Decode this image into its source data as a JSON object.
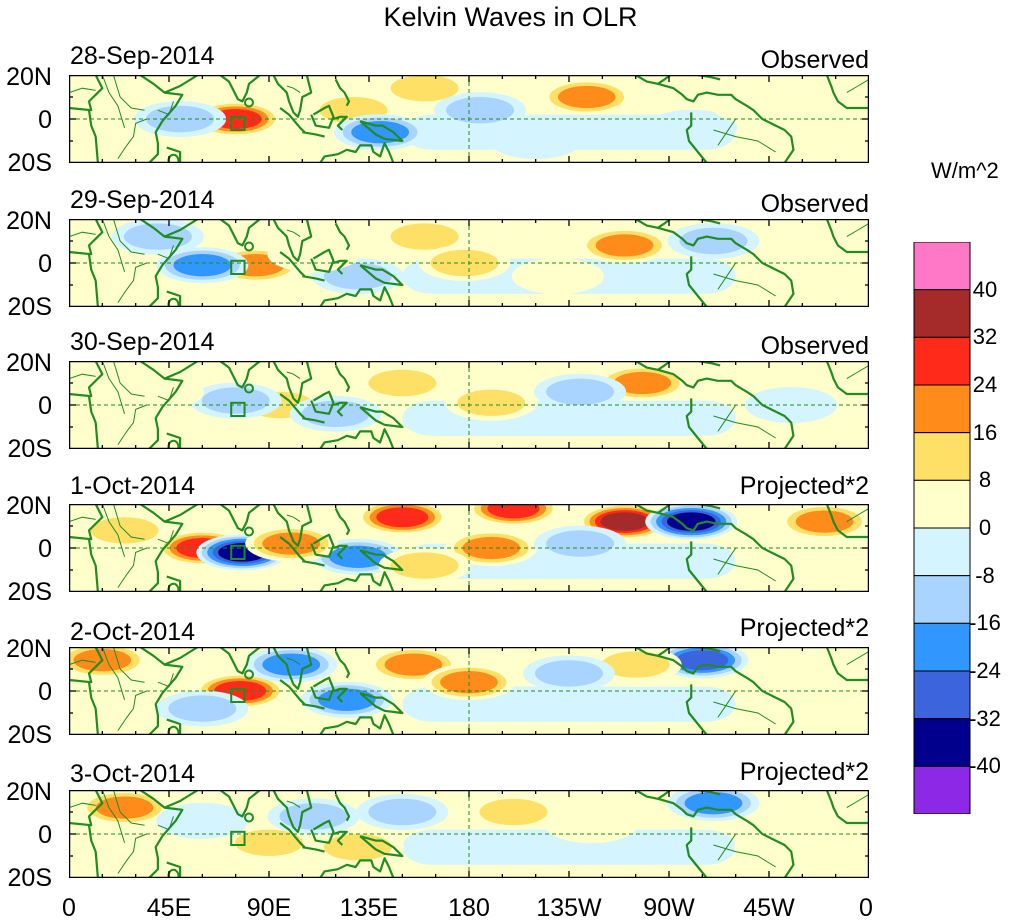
{
  "title": "Kelvin Waves in OLR",
  "units": "W/m^2",
  "lat_labels": [
    "20N",
    "0",
    "20S"
  ],
  "lon_labels": [
    "0",
    "45E",
    "90E",
    "135E",
    "180",
    "135W",
    "90W",
    "45W",
    "0"
  ],
  "colors": {
    "land": "#228b22",
    "pos": [
      "#ffffcc",
      "#ffe066",
      "#ff8c1a",
      "#ff2a1a",
      "#a52a2a",
      "#ff78c8"
    ],
    "neg": [
      "#d4f4ff",
      "#a8d4ff",
      "#3296ff",
      "#3c64dc",
      "#00008c",
      "#8c28e6"
    ]
  },
  "chart_data": {
    "type": "heatmap",
    "title": "Kelvin Waves in OLR",
    "xlabel": "",
    "ylabel": "",
    "xlim": [
      0,
      360
    ],
    "ylim": [
      -20,
      20
    ],
    "colorbar": {
      "label": "W/m^2",
      "levels": [
        40,
        32,
        24,
        16,
        8,
        0,
        -8,
        -16,
        -24,
        -32,
        -40
      ],
      "colors": [
        "#ff78c8",
        "#a52a2a",
        "#ff2a1a",
        "#ff8c1a",
        "#ffe066",
        "#ffffcc",
        "#d4f4ff",
        "#a8d4ff",
        "#3296ff",
        "#3c64dc",
        "#00008c",
        "#8c28e6"
      ]
    },
    "panels": [
      {
        "date": "28-Sep-2014",
        "kind": "Observed",
        "scale": 1,
        "anomalies": [
          {
            "lon": 75,
            "lat": 0,
            "value": 28
          },
          {
            "lon": 20,
            "lat": 8,
            "value": 8
          },
          {
            "lon": 160,
            "lat": 14,
            "value": 16
          },
          {
            "lon": 233,
            "lat": 10,
            "value": 18
          },
          {
            "lon": 128,
            "lat": 4,
            "value": 14
          },
          {
            "lon": 270,
            "lat": 12,
            "value": 8
          },
          {
            "lon": 140,
            "lat": -6,
            "value": -22
          },
          {
            "lon": 185,
            "lat": 4,
            "value": -14
          },
          {
            "lon": 280,
            "lat": -4,
            "value": -8
          },
          {
            "lon": 50,
            "lat": 0,
            "value": -14
          },
          {
            "lon": 210,
            "lat": -10,
            "value": -8
          },
          {
            "lon": 310,
            "lat": 6,
            "value": 8
          }
        ]
      },
      {
        "date": "29-Sep-2014",
        "kind": "Observed",
        "scale": 1,
        "anomalies": [
          {
            "lon": 84,
            "lat": -1,
            "value": 24
          },
          {
            "lon": 60,
            "lat": -1,
            "value": -20
          },
          {
            "lon": 160,
            "lat": 12,
            "value": 16
          },
          {
            "lon": 250,
            "lat": 8,
            "value": 18
          },
          {
            "lon": 178,
            "lat": 0,
            "value": 14
          },
          {
            "lon": 130,
            "lat": -6,
            "value": -16
          },
          {
            "lon": 290,
            "lat": 10,
            "value": -12
          },
          {
            "lon": 40,
            "lat": 12,
            "value": -14
          },
          {
            "lon": 110,
            "lat": 4,
            "value": 8
          },
          {
            "lon": 220,
            "lat": -6,
            "value": 8
          }
        ]
      },
      {
        "date": "30-Sep-2014",
        "kind": "Observed",
        "scale": 1,
        "anomalies": [
          {
            "lon": 95,
            "lat": 0,
            "value": 16
          },
          {
            "lon": 258,
            "lat": 10,
            "value": 18
          },
          {
            "lon": 190,
            "lat": 1,
            "value": 12
          },
          {
            "lon": 150,
            "lat": 10,
            "value": 10
          },
          {
            "lon": 75,
            "lat": 2,
            "value": -14
          },
          {
            "lon": 120,
            "lat": -4,
            "value": -12
          },
          {
            "lon": 230,
            "lat": 6,
            "value": -10
          },
          {
            "lon": 300,
            "lat": 12,
            "value": 8
          },
          {
            "lon": 40,
            "lat": 6,
            "value": 8
          },
          {
            "lon": 325,
            "lat": 0,
            "value": -8
          }
        ]
      },
      {
        "date": "1-Oct-2014",
        "kind": "Projected*2",
        "scale": 2,
        "anomalies": [
          {
            "lon": 60,
            "lat": 0,
            "value": 28
          },
          {
            "lon": 78,
            "lat": -2,
            "value": -38
          },
          {
            "lon": 150,
            "lat": 14,
            "value": 28
          },
          {
            "lon": 200,
            "lat": 18,
            "value": 26
          },
          {
            "lon": 250,
            "lat": 12,
            "value": 34
          },
          {
            "lon": 280,
            "lat": 12,
            "value": -38
          },
          {
            "lon": 190,
            "lat": 0,
            "value": 22
          },
          {
            "lon": 130,
            "lat": -4,
            "value": -24
          },
          {
            "lon": 100,
            "lat": 2,
            "value": 18
          },
          {
            "lon": 230,
            "lat": 2,
            "value": -16
          },
          {
            "lon": 340,
            "lat": 12,
            "value": 18
          },
          {
            "lon": 160,
            "lat": -8,
            "value": 10
          },
          {
            "lon": 25,
            "lat": 8,
            "value": 10
          }
        ]
      },
      {
        "date": "2-Oct-2014",
        "kind": "Projected*2",
        "scale": 2,
        "anomalies": [
          {
            "lon": 15,
            "lat": 14,
            "value": 22
          },
          {
            "lon": 77,
            "lat": 0,
            "value": 26
          },
          {
            "lon": 155,
            "lat": 12,
            "value": 22
          },
          {
            "lon": 180,
            "lat": 4,
            "value": 18
          },
          {
            "lon": 285,
            "lat": 14,
            "value": -32
          },
          {
            "lon": 255,
            "lat": 12,
            "value": 16
          },
          {
            "lon": 125,
            "lat": -4,
            "value": -24
          },
          {
            "lon": 100,
            "lat": 12,
            "value": -22
          },
          {
            "lon": 225,
            "lat": 8,
            "value": -12
          },
          {
            "lon": 330,
            "lat": 4,
            "value": 8
          },
          {
            "lon": 60,
            "lat": -8,
            "value": -10
          }
        ]
      },
      {
        "date": "3-Oct-2014",
        "kind": "Projected*2",
        "scale": 2,
        "anomalies": [
          {
            "lon": 25,
            "lat": 12,
            "value": 22
          },
          {
            "lon": 90,
            "lat": -4,
            "value": 16
          },
          {
            "lon": 290,
            "lat": 14,
            "value": -24
          },
          {
            "lon": 110,
            "lat": 8,
            "value": -16
          },
          {
            "lon": 150,
            "lat": 10,
            "value": -12
          },
          {
            "lon": 200,
            "lat": 10,
            "value": 10
          },
          {
            "lon": 235,
            "lat": 4,
            "value": 8
          },
          {
            "lon": 130,
            "lat": -6,
            "value": 10
          },
          {
            "lon": 60,
            "lat": 6,
            "value": -8
          },
          {
            "lon": 320,
            "lat": -6,
            "value": 8
          }
        ]
      }
    ]
  }
}
